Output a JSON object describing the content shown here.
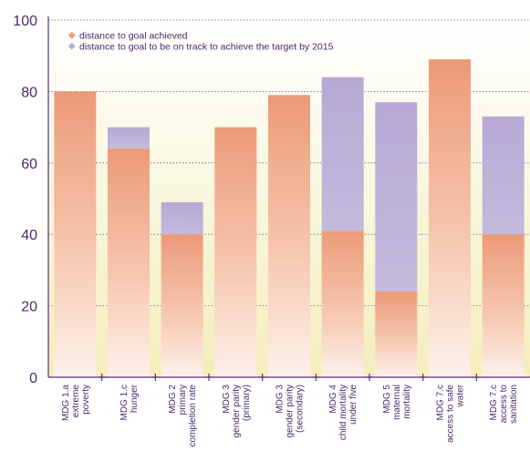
{
  "chart_data": {
    "type": "bar",
    "title": "",
    "xlabel": "",
    "ylabel": "",
    "ylim": [
      0,
      100
    ],
    "yticks": [
      "0",
      "20",
      "40",
      "60",
      "80",
      "100"
    ],
    "grid": "horizontal dotted",
    "legend_placement": "top-left",
    "categories": [
      [
        "MDG 1.a",
        "extreme",
        "poverty"
      ],
      [
        "MDG 1.c",
        "hunger"
      ],
      [
        "MDG 2",
        "primary",
        "completion rate"
      ],
      [
        "MDG 3",
        "gender parity",
        "(primary)"
      ],
      [
        "MDG 3",
        "gender parity",
        "(secondary)"
      ],
      [
        "MDG 4",
        "child mortality",
        "under five"
      ],
      [
        "MDG 5",
        "maternal",
        "mortality"
      ],
      [
        "MDG 7.c",
        "access to safe",
        "water"
      ],
      [
        "MDG 7.c",
        "access to",
        "sanitation"
      ]
    ],
    "series": [
      {
        "name": "distance to goal achieved",
        "color": "#ec9a78",
        "values": [
          80,
          64,
          40,
          70,
          79,
          41,
          24,
          89,
          40
        ]
      },
      {
        "name": "distance to goal to be on track to achieve the target by 2015",
        "color": "#b9acd6",
        "values": [
          80,
          70,
          49,
          70,
          79,
          84,
          77,
          89,
          73
        ]
      }
    ],
    "colors": {
      "plot_background": "#f5f0c4",
      "axis": "#5b2a86",
      "text": "#4a2a6a"
    }
  }
}
